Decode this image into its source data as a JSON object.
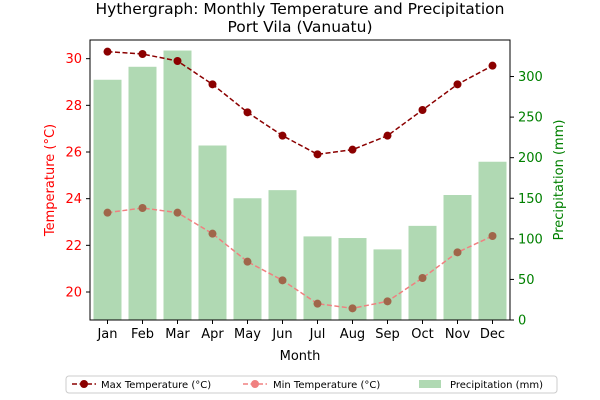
{
  "chart_data": {
    "type": "bar+line",
    "title": "Hythergraph: Monthly Temperature and Precipitation",
    "subtitle": "Port Vila (Vanuatu)",
    "xlabel": "Month",
    "ylabel_left": "Temperature (°C)",
    "ylabel_right": "Precipitation (mm)",
    "categories": [
      "Jan",
      "Feb",
      "Mar",
      "Apr",
      "May",
      "Jun",
      "Jul",
      "Aug",
      "Sep",
      "Oct",
      "Nov",
      "Dec"
    ],
    "ylim_left": [
      18.8,
      30.8
    ],
    "ylim_right": [
      0,
      345
    ],
    "yticks_left": [
      20,
      22,
      24,
      26,
      28,
      30
    ],
    "yticks_right": [
      0,
      50,
      100,
      150,
      200,
      250,
      300
    ],
    "series": [
      {
        "name": "Max Temperature (°C)",
        "axis": "left",
        "kind": "line",
        "color": "#8b0000",
        "style": "dashed",
        "values": [
          30.3,
          30.2,
          29.9,
          28.9,
          27.7,
          26.7,
          25.9,
          26.1,
          26.7,
          27.8,
          28.9,
          29.7
        ]
      },
      {
        "name": "Min Temperature (°C)",
        "axis": "left",
        "kind": "line",
        "color": "#f08080",
        "marker_color": "#a0664a",
        "style": "dashed",
        "values": [
          23.4,
          23.6,
          23.4,
          22.5,
          21.3,
          20.5,
          19.5,
          19.3,
          19.6,
          20.6,
          21.7,
          22.4
        ]
      },
      {
        "name": "Precipitation (mm)",
        "axis": "right",
        "kind": "bar",
        "color": "#b0d9b3",
        "values": [
          296,
          312,
          332,
          215,
          150,
          160,
          103,
          101,
          87,
          116,
          154,
          195
        ]
      }
    ],
    "legend_position": "bottom-center",
    "grid": false
  },
  "colors": {
    "left_axis": "#ff0000",
    "right_axis": "#008000"
  }
}
